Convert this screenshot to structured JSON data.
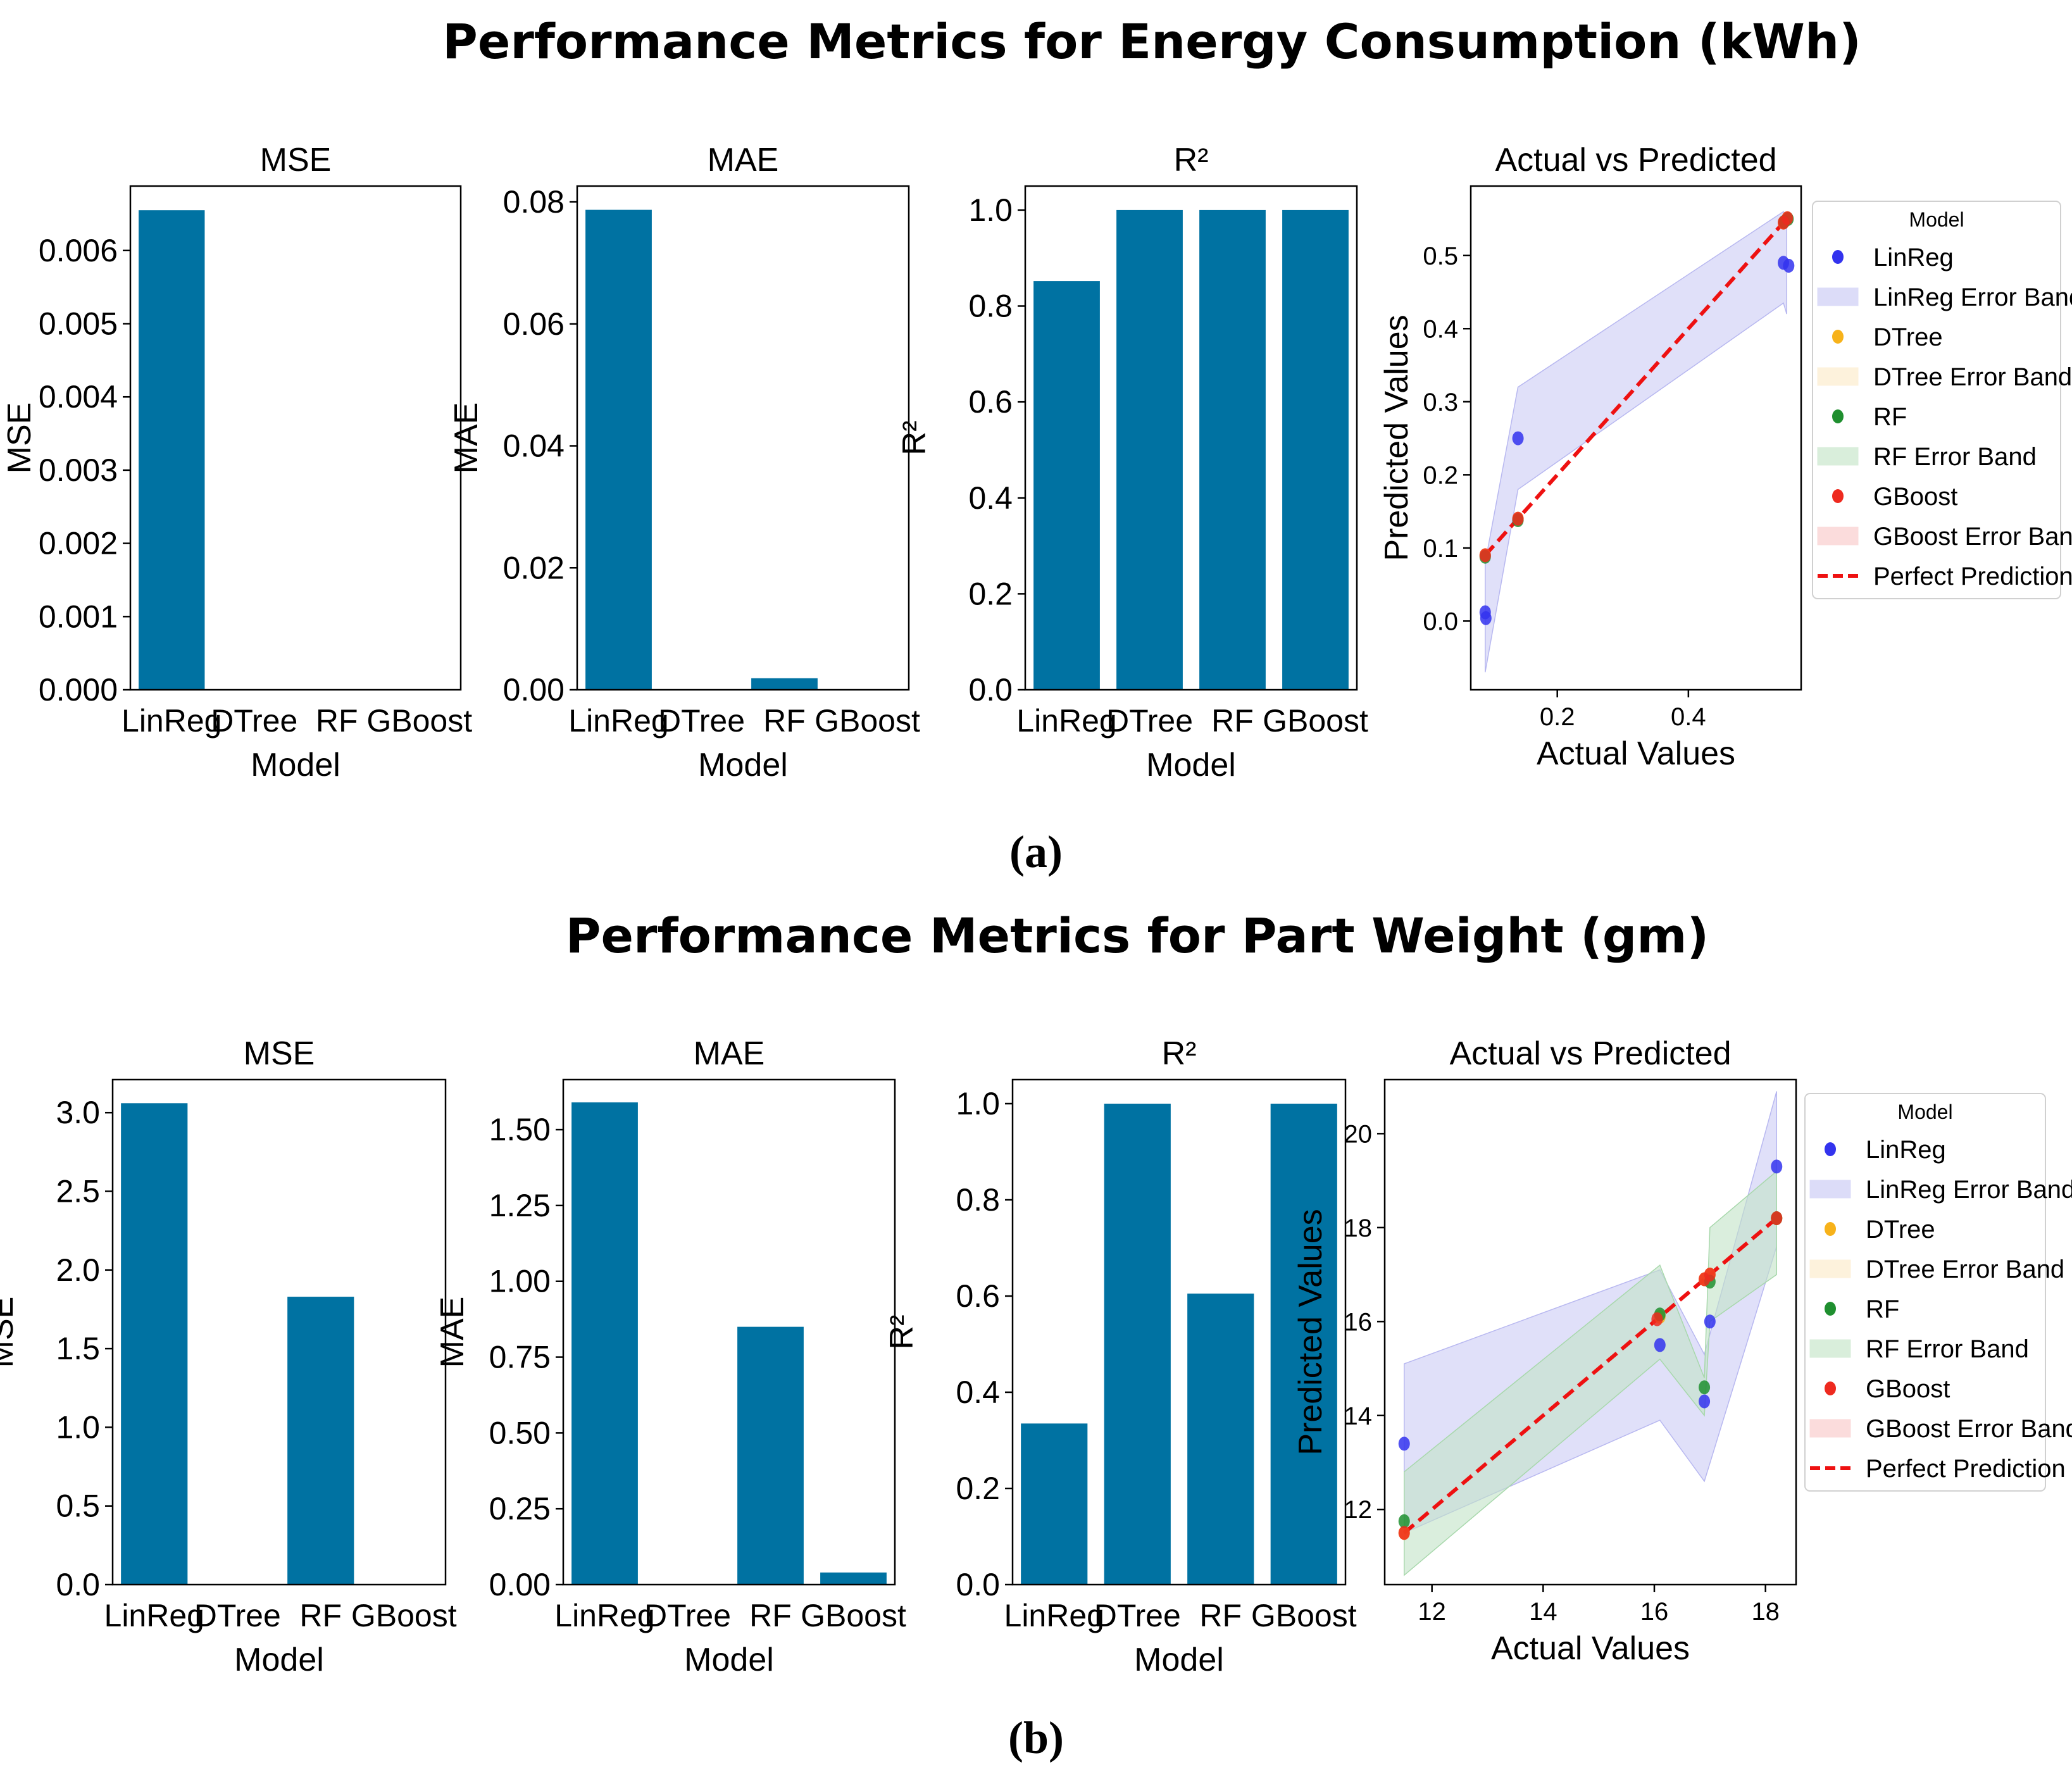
{
  "chart_data": [
    {
      "id": "a",
      "suptitle": "Performance Metrics for Energy Consumption (kWh)",
      "sublabel": "(a)",
      "bar_color": "#0072a2",
      "bars": [
        {
          "title": "MSE",
          "type": "bar",
          "xlabel": "Model",
          "ylabel": "MSE",
          "categories": [
            "LinReg",
            "DTree",
            "RF",
            "GBoost"
          ],
          "values": [
            0.00655,
            0.0,
            0.0,
            0.0
          ],
          "ylim": [
            0,
            0.00688
          ],
          "yticks": [
            "0.000",
            "0.001",
            "0.002",
            "0.003",
            "0.004",
            "0.005",
            "0.006"
          ],
          "ytick_values": [
            0,
            0.001,
            0.002,
            0.003,
            0.004,
            0.005,
            0.006
          ]
        },
        {
          "title": "MAE",
          "type": "bar",
          "xlabel": "Model",
          "ylabel": "MAE",
          "categories": [
            "LinReg",
            "DTree",
            "RF",
            "GBoost"
          ],
          "values": [
            0.0787,
            0.0,
            0.0019,
            0.0
          ],
          "ylim": [
            0,
            0.0826
          ],
          "yticks": [
            "0.00",
            "0.02",
            "0.04",
            "0.06",
            "0.08"
          ],
          "ytick_values": [
            0,
            0.02,
            0.04,
            0.06,
            0.08
          ]
        },
        {
          "title": "R²",
          "type": "bar",
          "xlabel": "Model",
          "ylabel": "R²",
          "categories": [
            "LinReg",
            "DTree",
            "RF",
            "GBoost"
          ],
          "values": [
            0.852,
            1.0,
            1.0,
            1.0
          ],
          "ylim": [
            0,
            1.05
          ],
          "yticks": [
            "0.0",
            "0.2",
            "0.4",
            "0.6",
            "0.8",
            "1.0"
          ],
          "ytick_values": [
            0,
            0.2,
            0.4,
            0.6,
            0.8,
            1.0
          ]
        }
      ],
      "scatter": {
        "title": "Actual vs Predicted",
        "type": "scatter",
        "xlabel": "Actual Values",
        "ylabel": "Predicted Values",
        "xlim": [
          0.068,
          0.572
        ],
        "ylim": [
          -0.094,
          0.595
        ],
        "xticks": [
          "0.2",
          "0.4"
        ],
        "xtick_values": [
          0.2,
          0.4
        ],
        "yticks": [
          "0.0",
          "0.1",
          "0.2",
          "0.3",
          "0.4",
          "0.5"
        ],
        "ytick_values": [
          0,
          0.1,
          0.2,
          0.3,
          0.4,
          0.5
        ],
        "band": {
          "x": [
            0.09,
            0.14,
            0.545,
            0.55
          ],
          "upper": [
            0.08,
            0.32,
            0.56,
            0.555
          ],
          "lower": [
            -0.07,
            0.18,
            0.435,
            0.42
          ]
        },
        "series": [
          {
            "name": "LinReg",
            "color": "#3333ee",
            "x": [
              0.09,
              0.091,
              0.14,
              0.545,
              0.553
            ],
            "y": [
              0.012,
              0.004,
              0.25,
              0.49,
              0.486
            ]
          },
          {
            "name": "DTree",
            "color": "#f7b21a",
            "x": [
              0.09,
              0.14,
              0.545,
              0.551
            ],
            "y": [
              0.09,
              0.14,
              0.545,
              0.551
            ]
          },
          {
            "name": "RF",
            "color": "#1f8f2f",
            "x": [
              0.09,
              0.14,
              0.546,
              0.552
            ],
            "y": [
              0.088,
              0.138,
              0.546,
              0.55
            ]
          },
          {
            "name": "GBoost",
            "color": "#ee2a1f",
            "x": [
              0.09,
              0.14,
              0.545,
              0.551
            ],
            "y": [
              0.09,
              0.14,
              0.545,
              0.551
            ]
          }
        ],
        "perfect_line": {
          "x": [
            0.09,
            0.553
          ],
          "y": [
            0.09,
            0.553
          ]
        }
      }
    },
    {
      "id": "b",
      "suptitle": "Performance Metrics for Part Weight (gm)",
      "sublabel": "(b)",
      "bar_color": "#0072a2",
      "bars": [
        {
          "title": "MSE",
          "type": "bar",
          "xlabel": "Model",
          "ylabel": "MSE",
          "categories": [
            "LinReg",
            "DTree",
            "RF",
            "GBoost"
          ],
          "values": [
            3.06,
            0.0,
            1.83,
            0.0
          ],
          "ylim": [
            0,
            3.21
          ],
          "yticks": [
            "0.0",
            "0.5",
            "1.0",
            "1.5",
            "2.0",
            "2.5",
            "3.0"
          ],
          "ytick_values": [
            0,
            0.5,
            1.0,
            1.5,
            2.0,
            2.5,
            3.0
          ]
        },
        {
          "title": "MAE",
          "type": "bar",
          "xlabel": "Model",
          "ylabel": "MAE",
          "categories": [
            "LinReg",
            "DTree",
            "RF",
            "GBoost"
          ],
          "values": [
            1.59,
            0.0,
            0.85,
            0.04
          ],
          "ylim": [
            0,
            1.665
          ],
          "yticks": [
            "0.00",
            "0.25",
            "0.50",
            "0.75",
            "1.00",
            "1.25",
            "1.50"
          ],
          "ytick_values": [
            0,
            0.25,
            0.5,
            0.75,
            1.0,
            1.25,
            1.5
          ]
        },
        {
          "title": "R²",
          "type": "bar",
          "xlabel": "Model",
          "ylabel": "R²",
          "categories": [
            "LinReg",
            "DTree",
            "RF",
            "GBoost"
          ],
          "values": [
            0.335,
            1.0,
            0.605,
            1.0
          ],
          "ylim": [
            0,
            1.05
          ],
          "yticks": [
            "0.0",
            "0.2",
            "0.4",
            "0.6",
            "0.8",
            "1.0"
          ],
          "ytick_values": [
            0,
            0.2,
            0.4,
            0.6,
            0.8,
            1.0
          ]
        }
      ],
      "scatter": {
        "title": "Actual vs Predicted",
        "type": "scatter",
        "xlabel": "Actual Values",
        "ylabel": "Predicted Values",
        "xlim": [
          11.15,
          18.55
        ],
        "ylim": [
          10.4,
          21.15
        ],
        "xticks": [
          "12",
          "14",
          "16",
          "18"
        ],
        "xtick_values": [
          12,
          14,
          16,
          18
        ],
        "yticks": [
          "12",
          "14",
          "16",
          "18",
          "20"
        ],
        "ytick_values": [
          12,
          14,
          16,
          18,
          20
        ],
        "band": {
          "x": [
            11.5,
            16.1,
            16.9,
            18.2
          ],
          "upper": [
            15.1,
            17.1,
            15.3,
            20.9
          ],
          "lower": [
            11.5,
            13.9,
            12.6,
            17.6
          ]
        },
        "band2": {
          "x": [
            11.5,
            16.1,
            16.9,
            17.0,
            18.2
          ],
          "upper": [
            12.8,
            17.2,
            14.8,
            18.0,
            19.2
          ],
          "lower": [
            10.6,
            15.2,
            14.0,
            16.0,
            17.0
          ]
        },
        "series": [
          {
            "name": "LinReg",
            "color": "#3333ee",
            "x": [
              11.5,
              16.1,
              16.9,
              17.0,
              18.2
            ],
            "y": [
              13.4,
              15.5,
              14.3,
              16.0,
              19.3
            ]
          },
          {
            "name": "DTree",
            "color": "#f7b21a",
            "x": [
              11.5,
              16.1,
              16.9,
              17.0,
              18.2
            ],
            "y": [
              11.5,
              16.1,
              16.9,
              17.0,
              18.2
            ]
          },
          {
            "name": "RF",
            "color": "#1f8f2f",
            "x": [
              11.5,
              16.1,
              16.9,
              17.0,
              18.2
            ],
            "y": [
              11.75,
              16.15,
              14.6,
              16.85,
              18.2
            ]
          },
          {
            "name": "GBoost",
            "color": "#ee2a1f",
            "x": [
              11.5,
              16.05,
              16.9,
              17.0,
              18.2
            ],
            "y": [
              11.5,
              16.05,
              16.9,
              17.0,
              18.2
            ]
          }
        ],
        "perfect_line": {
          "x": [
            11.5,
            18.2
          ],
          "y": [
            11.5,
            18.2
          ]
        }
      }
    }
  ],
  "legend": {
    "title": "Model",
    "items": [
      {
        "label": "LinReg",
        "kind": "dot",
        "color": "#3333ee"
      },
      {
        "label": "LinReg Error Band",
        "kind": "patch",
        "color": "#dcdcf8"
      },
      {
        "label": "DTree",
        "kind": "dot",
        "color": "#f7b21a"
      },
      {
        "label": "DTree Error Band",
        "kind": "patch",
        "color": "#fdf2dc"
      },
      {
        "label": "RF",
        "kind": "dot",
        "color": "#1f8f2f"
      },
      {
        "label": "RF Error Band",
        "kind": "patch",
        "color": "#d9eedb"
      },
      {
        "label": "GBoost",
        "kind": "dot",
        "color": "#ee2a1f"
      },
      {
        "label": "GBoost Error Band",
        "kind": "patch",
        "color": "#fbdcdc"
      },
      {
        "label": "Perfect Prediction",
        "kind": "dashed",
        "color": "#ee1111"
      }
    ]
  },
  "colors": {
    "band_linreg": "#ccccf5",
    "band_rf": "#c2e3c6",
    "perfect": "#ee1111"
  }
}
